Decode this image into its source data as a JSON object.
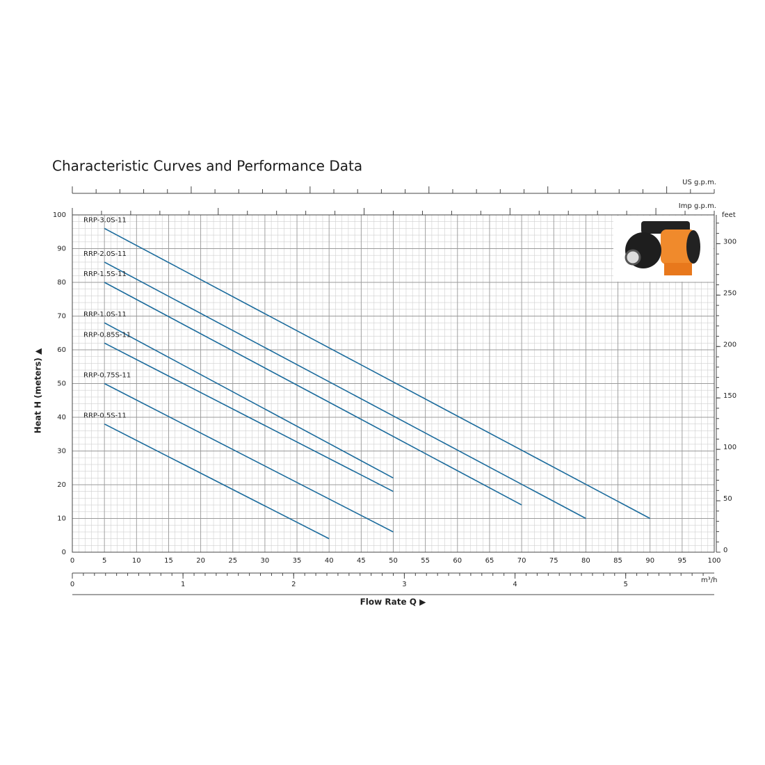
{
  "chart_data": {
    "type": "line",
    "title": "Characteristic Curves and Performance Data",
    "ylabel": "Heat H (meters) ▲",
    "xlabel": "Flow Rate Q ▶",
    "y2label": "feet",
    "x2label": "m³/h",
    "top_axis_labels": [
      "US g.p.m.",
      "Imp g.p.m."
    ],
    "xlim": [
      0,
      100
    ],
    "xticks": [
      0,
      5,
      10,
      15,
      20,
      25,
      30,
      35,
      40,
      45,
      50,
      55,
      60,
      65,
      70,
      75,
      80,
      85,
      90,
      95,
      100
    ],
    "ylim": [
      0,
      100
    ],
    "yticks": [
      0,
      10,
      20,
      30,
      40,
      50,
      60,
      70,
      80,
      90,
      100
    ],
    "y2lim": [
      0,
      328
    ],
    "y2ticks": [
      0,
      50,
      100,
      150,
      200,
      250,
      300
    ],
    "x2lim": [
      0,
      5.8
    ],
    "x2ticks": [
      0,
      1,
      2,
      3,
      4,
      5
    ],
    "grid": true,
    "series": [
      {
        "name": "RRP-3.0S-11",
        "color": "#1b6b9c",
        "x": [
          5,
          90
        ],
        "values": [
          96,
          10
        ]
      },
      {
        "name": "RRP-2.0S-11",
        "color": "#1b6b9c",
        "x": [
          5,
          80
        ],
        "values": [
          86,
          10
        ]
      },
      {
        "name": "RRP-1.5S-11",
        "color": "#1b6b9c",
        "x": [
          5,
          70
        ],
        "values": [
          80,
          14
        ]
      },
      {
        "name": "RRP-1.0S-11",
        "color": "#1b6b9c",
        "x": [
          5,
          50
        ],
        "values": [
          68,
          22
        ]
      },
      {
        "name": "RRP-0.85S-11",
        "color": "#1b6b9c",
        "x": [
          5,
          50
        ],
        "values": [
          62,
          18
        ]
      },
      {
        "name": "RRP-0.75S-11",
        "color": "#1b6b9c",
        "x": [
          5,
          50
        ],
        "values": [
          50,
          6
        ]
      },
      {
        "name": "RRP-0.5S-11",
        "color": "#1b6b9c",
        "x": [
          5,
          40
        ],
        "values": [
          38,
          4
        ]
      }
    ]
  }
}
